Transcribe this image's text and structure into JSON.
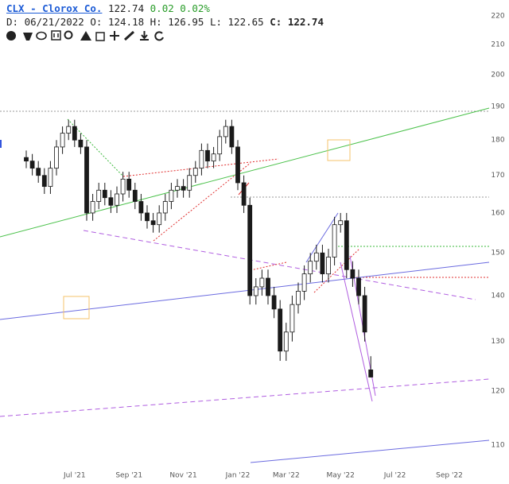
{
  "header": {
    "symbol": "CLX - Clorox Co.",
    "last": "122.74",
    "change": "0.02",
    "change_pct": "0.02%",
    "period": "D: 06/21/2022",
    "ohlc": [
      {
        "label": "O:",
        "value": "124.18"
      },
      {
        "label": "H:",
        "value": "126.95"
      },
      {
        "label": "L:",
        "value": "122.65"
      },
      {
        "label": "C:",
        "value": "122.74"
      }
    ]
  },
  "chart_data": {
    "type": "candlestick",
    "log": true,
    "grid": false,
    "up_fill": "#ffffff",
    "down_fill": "#1a1a1a",
    "color": "#1a1a1a",
    "ylim": [
      106.5,
      225.7
    ],
    "yticks": [
      110,
      120,
      130,
      140,
      150,
      160,
      170,
      180,
      190,
      200,
      210,
      220
    ],
    "categories": [
      null,
      null,
      null,
      null,
      null,
      null,
      null,
      null,
      "Jul '21",
      null,
      null,
      null,
      null,
      null,
      null,
      null,
      null,
      "Sep '21",
      null,
      null,
      null,
      null,
      null,
      null,
      null,
      null,
      "Nov '21",
      null,
      null,
      null,
      null,
      null,
      null,
      null,
      null,
      "Jan '22",
      null,
      null,
      null,
      null,
      null,
      null,
      null,
      "Mar '22",
      null,
      null,
      null,
      null,
      null,
      null,
      null,
      null,
      "May '22",
      null,
      null,
      null,
      null,
      null,
      null,
      null,
      null,
      "Jul '22",
      null,
      null,
      null,
      null,
      null,
      null,
      null,
      null,
      "Sep '22",
      null,
      null,
      null,
      null
    ],
    "open": [
      175,
      174,
      172,
      170,
      167,
      172,
      178,
      182,
      184,
      180,
      178,
      160,
      163,
      166,
      164,
      162,
      165,
      169,
      166,
      163,
      160,
      158,
      157,
      160,
      163,
      166,
      167,
      166,
      170,
      172,
      177,
      174,
      176,
      181,
      184,
      178,
      168,
      162,
      140,
      142,
      144,
      140,
      137,
      128,
      132,
      138,
      141,
      145,
      148,
      150,
      145,
      149,
      157,
      158,
      146,
      144,
      140,
      124.18,
      null,
      null,
      null,
      null,
      null,
      null,
      null,
      null,
      null,
      null,
      null,
      null,
      null,
      null,
      null,
      null,
      null
    ],
    "high": [
      177,
      176,
      174,
      172,
      174,
      180,
      184,
      186,
      186,
      182,
      180,
      165,
      168,
      168,
      166,
      167,
      171,
      171,
      168,
      165,
      162,
      160,
      162,
      165,
      168,
      169,
      169,
      172,
      174,
      179,
      179,
      178,
      183,
      186,
      186,
      180,
      170,
      164,
      144,
      146,
      146,
      142,
      139,
      134,
      140,
      143,
      147,
      150,
      152,
      152,
      151,
      159,
      160,
      160,
      148,
      146,
      142,
      126.95,
      null,
      null,
      null,
      null,
      null,
      null,
      null,
      null,
      null,
      null,
      null,
      null,
      null,
      null,
      null,
      null,
      null
    ],
    "low": [
      172,
      170,
      168,
      165,
      165,
      170,
      176,
      180,
      178,
      176,
      158,
      158,
      161,
      162,
      160,
      160,
      163,
      164,
      161,
      158,
      156,
      155,
      155,
      158,
      161,
      164,
      164,
      164,
      168,
      170,
      172,
      172,
      174,
      179,
      176,
      166,
      160,
      138,
      138,
      140,
      138,
      135,
      126,
      126,
      130,
      136,
      139,
      143,
      146,
      143,
      143,
      147,
      155,
      144,
      142,
      138,
      130,
      122.65,
      null,
      null,
      null,
      null,
      null,
      null,
      null,
      null,
      null,
      null,
      null,
      null,
      null,
      null,
      null,
      null,
      null
    ],
    "close": [
      174,
      172,
      170,
      167,
      172,
      178,
      182,
      184,
      180,
      178,
      160,
      163,
      166,
      164,
      162,
      165,
      169,
      166,
      163,
      160,
      158,
      157,
      160,
      163,
      166,
      167,
      166,
      170,
      172,
      177,
      174,
      176,
      181,
      184,
      178,
      168,
      162,
      140,
      142,
      144,
      140,
      137,
      128,
      132,
      138,
      141,
      145,
      148,
      150,
      145,
      149,
      157,
      158,
      146,
      144,
      140,
      132,
      122.74,
      null,
      null,
      null,
      null,
      null,
      null,
      null,
      null,
      null,
      null,
      null,
      null,
      null,
      null,
      null,
      null,
      null
    ]
  }
}
